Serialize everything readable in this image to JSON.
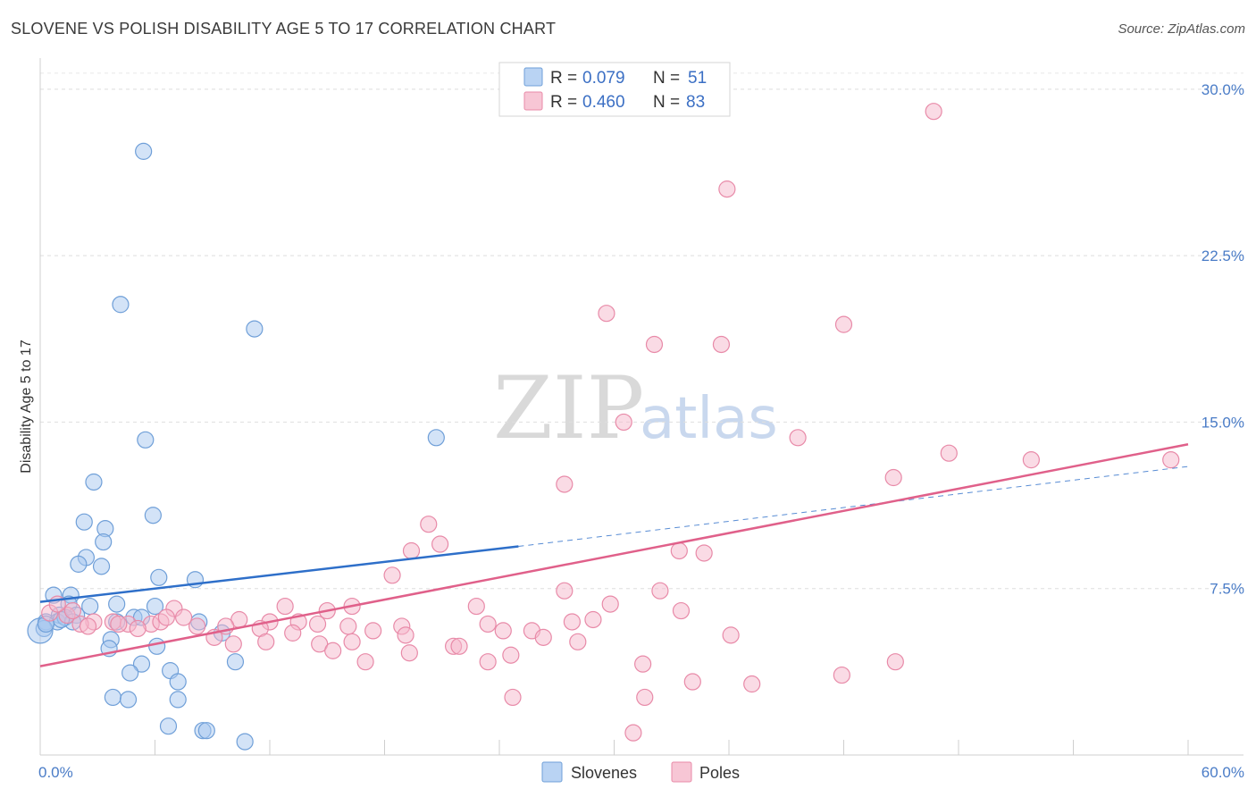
{
  "title": "SLOVENE VS POLISH DISABILITY AGE 5 TO 17 CORRELATION CHART",
  "source": "Source: ZipAtlas.com",
  "chart_data": {
    "type": "scatter",
    "ylabel": "Disability Age 5 to 17",
    "xlim": [
      0,
      60
    ],
    "ylim": [
      0,
      31
    ],
    "x_tick_labels": [
      {
        "value": 0,
        "label": "0.0%"
      },
      {
        "value": 60,
        "label": "60.0%"
      }
    ],
    "y_tick_labels": [
      {
        "value": 7.5,
        "label": "7.5%"
      },
      {
        "value": 15.0,
        "label": "15.0%"
      },
      {
        "value": 22.5,
        "label": "22.5%"
      },
      {
        "value": 30.0,
        "label": "30.0%"
      }
    ],
    "grid": true,
    "legend": {
      "placement": "top-center",
      "rows": [
        {
          "r_label": "R =",
          "r_value": "0.079",
          "n_label": "N =",
          "n_value": "51",
          "color": "#a8c8f0"
        },
        {
          "r_label": "R =",
          "r_value": "0.460",
          "n_label": "N =",
          "n_value": "83",
          "color": "#f5b8cb"
        }
      ]
    },
    "series": [
      {
        "name": "Slovenes",
        "color": "#a8c8f0",
        "edge_color": "#6f9fd8",
        "trend": {
          "x0": 0,
          "y0": 6.9,
          "x1": 25,
          "y1": 9.4,
          "dash_to_x": 60,
          "dash_to_y": 13.0,
          "color": "#2e6fc9"
        },
        "points": [
          [
            5.4,
            27.2
          ],
          [
            4.2,
            20.3
          ],
          [
            11.2,
            19.2
          ],
          [
            5.5,
            14.2
          ],
          [
            20.7,
            14.3
          ],
          [
            2.8,
            12.3
          ],
          [
            2.3,
            10.5
          ],
          [
            5.9,
            10.8
          ],
          [
            3.4,
            10.2
          ],
          [
            3.3,
            9.6
          ],
          [
            2.4,
            8.9
          ],
          [
            2.0,
            8.6
          ],
          [
            3.2,
            8.5
          ],
          [
            6.2,
            8.0
          ],
          [
            8.1,
            7.9
          ],
          [
            0.7,
            7.2
          ],
          [
            1.6,
            7.2
          ],
          [
            1.5,
            6.8
          ],
          [
            4.0,
            6.8
          ],
          [
            6.0,
            6.7
          ],
          [
            2.6,
            6.7
          ],
          [
            1.0,
            6.3
          ],
          [
            1.9,
            6.3
          ],
          [
            0.3,
            6.0
          ],
          [
            0.9,
            6.0
          ],
          [
            1.3,
            6.2
          ],
          [
            1.7,
            6.0
          ],
          [
            4.0,
            6.0
          ],
          [
            4.9,
            6.2
          ],
          [
            5.3,
            6.2
          ],
          [
            8.3,
            6.0
          ],
          [
            0.2,
            5.7
          ],
          [
            9.5,
            5.5
          ],
          [
            3.7,
            5.2
          ],
          [
            3.6,
            4.8
          ],
          [
            6.1,
            4.9
          ],
          [
            0.0,
            5.6
          ],
          [
            5.3,
            4.1
          ],
          [
            10.2,
            4.2
          ],
          [
            4.7,
            3.7
          ],
          [
            6.8,
            3.8
          ],
          [
            7.2,
            3.3
          ],
          [
            3.8,
            2.6
          ],
          [
            4.6,
            2.5
          ],
          [
            7.2,
            2.5
          ],
          [
            6.7,
            1.3
          ],
          [
            8.5,
            1.1
          ],
          [
            8.7,
            1.1
          ],
          [
            10.7,
            0.6
          ],
          [
            0.3,
            5.9
          ],
          [
            1.1,
            6.1
          ]
        ]
      },
      {
        "name": "Poles",
        "color": "#f5b8cb",
        "edge_color": "#e88aa8",
        "trend": {
          "x0": 0,
          "y0": 4.0,
          "x1": 60,
          "y1": 14.0,
          "color": "#e0608a"
        },
        "points": [
          [
            46.7,
            29.0
          ],
          [
            35.9,
            25.5
          ],
          [
            29.6,
            19.9
          ],
          [
            32.1,
            18.5
          ],
          [
            35.6,
            18.5
          ],
          [
            42.0,
            19.4
          ],
          [
            30.5,
            15.0
          ],
          [
            39.6,
            14.3
          ],
          [
            47.5,
            13.6
          ],
          [
            51.8,
            13.3
          ],
          [
            59.1,
            13.3
          ],
          [
            44.6,
            12.5
          ],
          [
            27.4,
            12.2
          ],
          [
            20.3,
            10.4
          ],
          [
            20.9,
            9.5
          ],
          [
            19.4,
            9.2
          ],
          [
            33.4,
            9.2
          ],
          [
            34.7,
            9.1
          ],
          [
            18.4,
            8.1
          ],
          [
            27.4,
            7.4
          ],
          [
            32.4,
            7.4
          ],
          [
            29.8,
            6.8
          ],
          [
            22.8,
            6.7
          ],
          [
            16.3,
            6.7
          ],
          [
            12.8,
            6.7
          ],
          [
            15.0,
            6.5
          ],
          [
            7.0,
            6.6
          ],
          [
            7.5,
            6.2
          ],
          [
            10.4,
            6.1
          ],
          [
            12.0,
            6.0
          ],
          [
            13.5,
            6.0
          ],
          [
            14.5,
            5.9
          ],
          [
            16.1,
            5.8
          ],
          [
            18.9,
            5.8
          ],
          [
            23.4,
            5.9
          ],
          [
            27.8,
            6.0
          ],
          [
            28.9,
            6.1
          ],
          [
            33.5,
            6.5
          ],
          [
            2.8,
            6.0
          ],
          [
            3.8,
            6.0
          ],
          [
            4.6,
            5.9
          ],
          [
            5.8,
            5.9
          ],
          [
            6.3,
            6.0
          ],
          [
            8.2,
            5.8
          ],
          [
            9.7,
            5.8
          ],
          [
            11.5,
            5.7
          ],
          [
            13.2,
            5.5
          ],
          [
            17.4,
            5.6
          ],
          [
            19.1,
            5.4
          ],
          [
            24.2,
            5.6
          ],
          [
            25.7,
            5.6
          ],
          [
            26.3,
            5.3
          ],
          [
            28.1,
            5.1
          ],
          [
            9.1,
            5.3
          ],
          [
            10.1,
            5.0
          ],
          [
            11.8,
            5.1
          ],
          [
            14.6,
            5.0
          ],
          [
            16.3,
            5.1
          ],
          [
            21.6,
            4.9
          ],
          [
            21.9,
            4.9
          ],
          [
            15.3,
            4.7
          ],
          [
            19.3,
            4.6
          ],
          [
            24.6,
            4.5
          ],
          [
            17.0,
            4.2
          ],
          [
            23.4,
            4.2
          ],
          [
            31.5,
            4.1
          ],
          [
            36.1,
            5.4
          ],
          [
            41.9,
            3.6
          ],
          [
            44.7,
            4.2
          ],
          [
            34.1,
            3.3
          ],
          [
            37.2,
            3.2
          ],
          [
            24.7,
            2.6
          ],
          [
            31.6,
            2.6
          ],
          [
            31.0,
            1.0
          ],
          [
            0.5,
            6.4
          ],
          [
            1.4,
            6.3
          ],
          [
            2.1,
            5.9
          ],
          [
            2.5,
            5.8
          ],
          [
            4.1,
            5.9
          ],
          [
            5.1,
            5.7
          ],
          [
            0.9,
            6.8
          ],
          [
            1.7,
            6.5
          ],
          [
            6.6,
            6.2
          ]
        ]
      }
    ]
  },
  "bottom_legend": [
    {
      "label": "Slovenes",
      "color": "#a8c8f0"
    },
    {
      "label": "Poles",
      "color": "#f5b8cb"
    }
  ],
  "watermark": {
    "part1": "ZIP",
    "part2": "atlas"
  }
}
